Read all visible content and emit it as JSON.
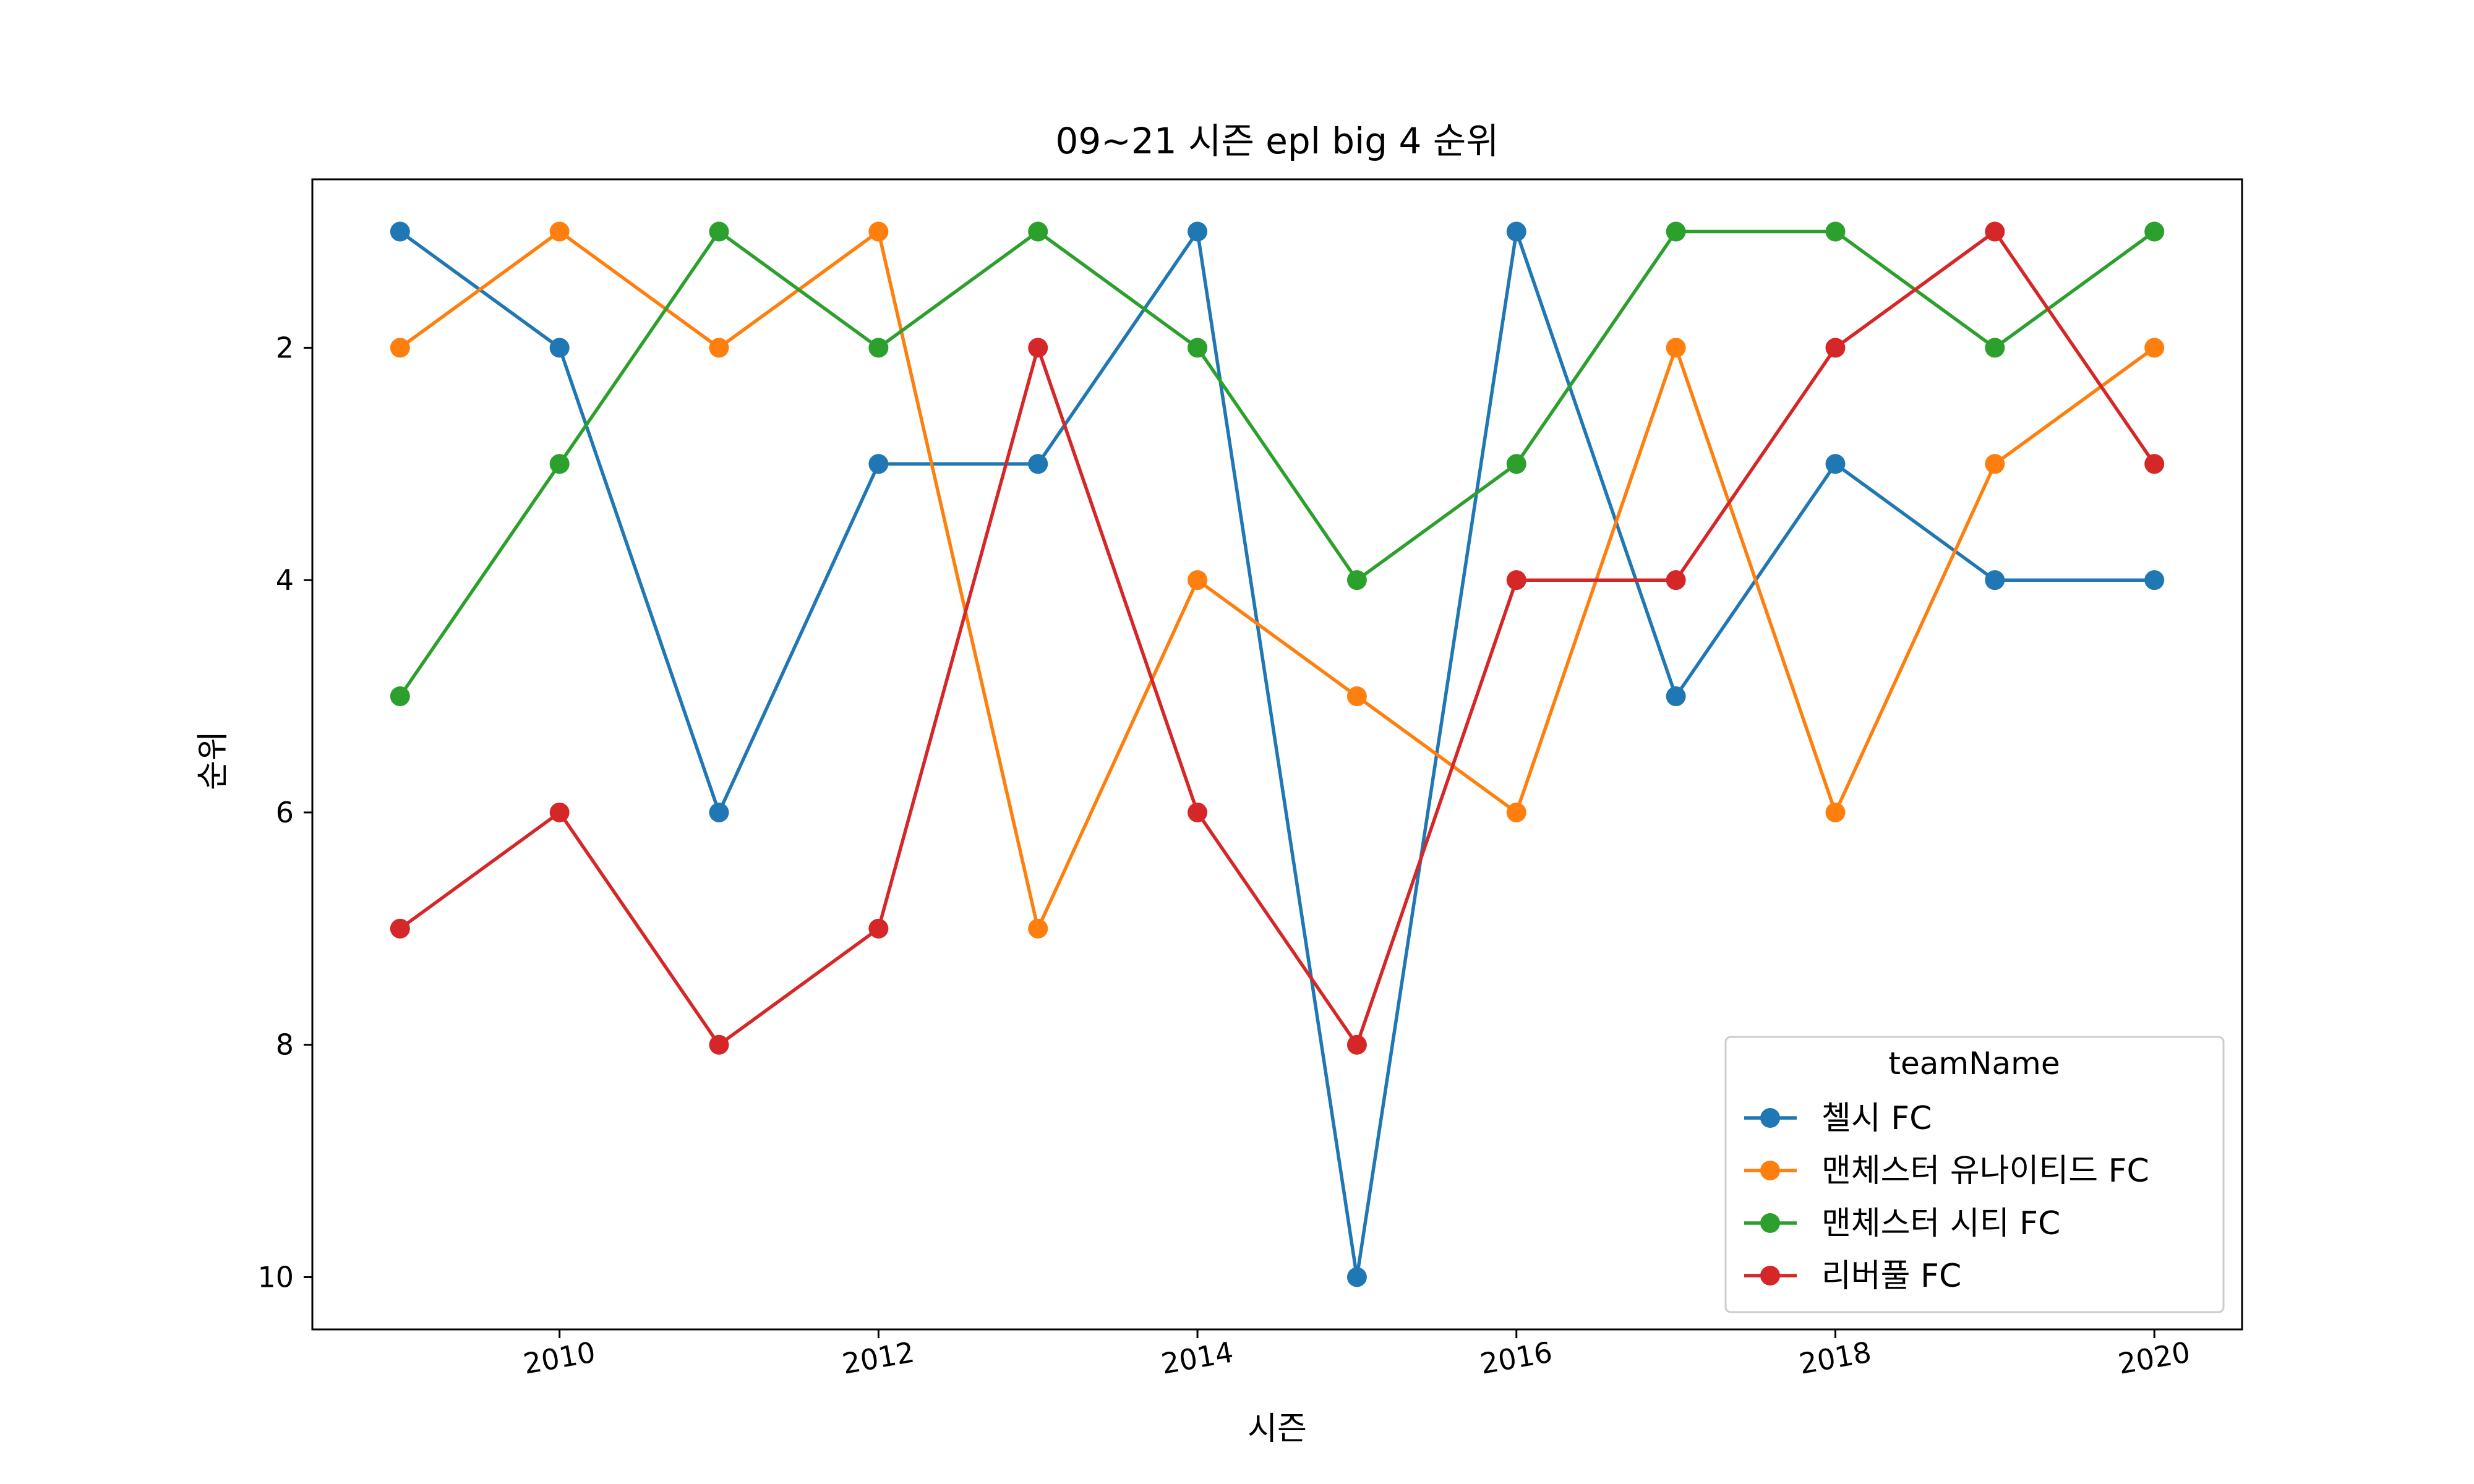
{
  "chart_data": {
    "type": "line",
    "title": "09~21 시즌 epl big 4 순위",
    "xlabel": "시즌",
    "ylabel": "순위",
    "x": [
      2009,
      2010,
      2011,
      2012,
      2013,
      2014,
      2015,
      2016,
      2017,
      2018,
      2019,
      2020
    ],
    "xticks": [
      2010,
      2012,
      2014,
      2016,
      2018,
      2020
    ],
    "yticks": [
      2,
      4,
      6,
      8,
      10
    ],
    "xlim": [
      2008.45,
      2020.55
    ],
    "ylim": [
      10.45,
      0.55
    ],
    "y_inverted": true,
    "grid": false,
    "legend": {
      "title": "teamName",
      "position": "lower-right"
    },
    "series": [
      {
        "name": "첼시 FC",
        "color": "#1f77b4",
        "values": [
          1,
          2,
          6,
          3,
          3,
          1,
          10,
          1,
          5,
          3,
          4,
          4
        ]
      },
      {
        "name": "맨체스터 유나이티드 FC",
        "color": "#ff7f0e",
        "values": [
          2,
          1,
          2,
          1,
          7,
          4,
          5,
          6,
          2,
          6,
          3,
          2
        ]
      },
      {
        "name": "맨체스터 시티 FC",
        "color": "#2ca02c",
        "values": [
          5,
          3,
          1,
          2,
          1,
          2,
          4,
          3,
          1,
          1,
          2,
          1
        ]
      },
      {
        "name": "리버풀 FC",
        "color": "#d62728",
        "values": [
          7,
          6,
          8,
          7,
          2,
          6,
          8,
          4,
          4,
          2,
          1,
          3
        ]
      }
    ]
  }
}
